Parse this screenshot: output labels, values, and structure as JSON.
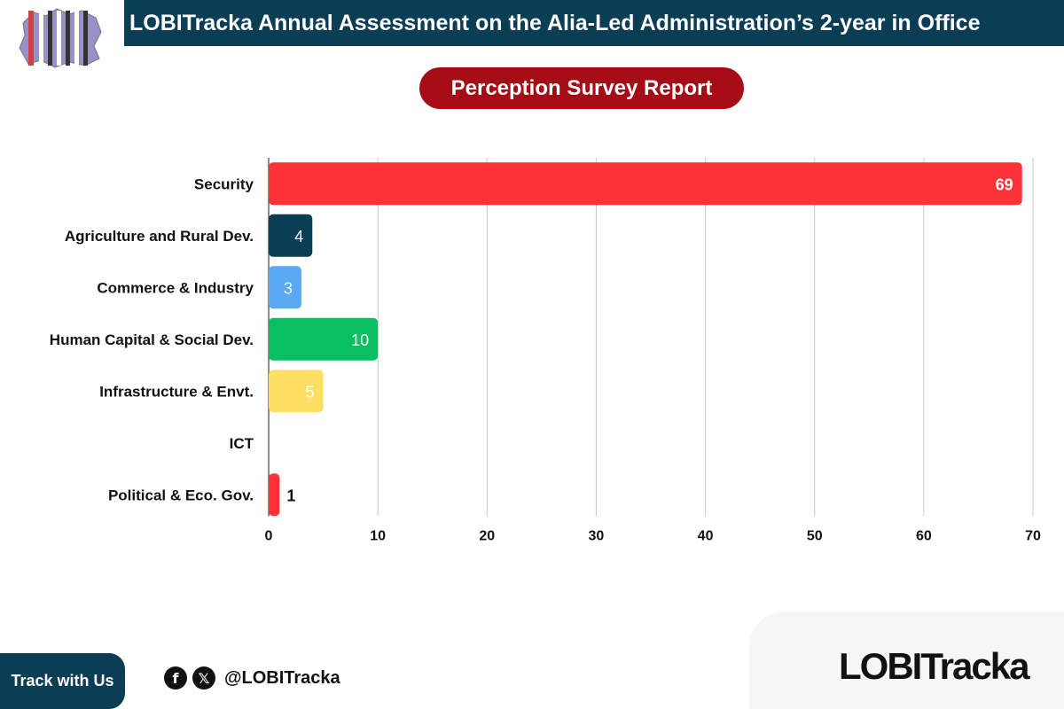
{
  "header": {
    "title": "LOBITracka Annual Assessment on the Alia-Led Administration’s 2-year in Office"
  },
  "subtitle": "Perception Survey Report",
  "chart_data": {
    "type": "bar",
    "orientation": "horizontal",
    "title": "Perception Survey Report",
    "categories": [
      "Security",
      "Agriculture and Rural Dev.",
      "Commerce & Industry",
      "Human Capital & Social Dev.",
      "Infrastructure & Envt.",
      "ICT",
      "Political & Eco. Gov."
    ],
    "values": [
      69,
      4,
      3,
      10,
      5,
      0,
      1
    ],
    "value_labels": [
      "69",
      "4",
      "3",
      "10",
      "5",
      "",
      "1"
    ],
    "colors": [
      "#ff3237",
      "#0b3d55",
      "#5aa9f2",
      "#0abf62",
      "#ffdf63",
      "#cccccc",
      "#ff3237"
    ],
    "label_colors": [
      "#ffffff",
      "#ffffff",
      "#ffffff",
      "#ffffff",
      "#ffffff",
      "#111111",
      "#111111"
    ],
    "xlim": [
      0,
      70
    ],
    "xticks": [
      0,
      10,
      20,
      30,
      40,
      50,
      60,
      70
    ],
    "grid": true,
    "xlabel": "",
    "ylabel": ""
  },
  "footer": {
    "track_label": "Track with Us",
    "facebook_icon": "facebook-icon",
    "x_icon": "x-icon",
    "handle": "@LOBITracka",
    "brand": "LOBITracka"
  }
}
